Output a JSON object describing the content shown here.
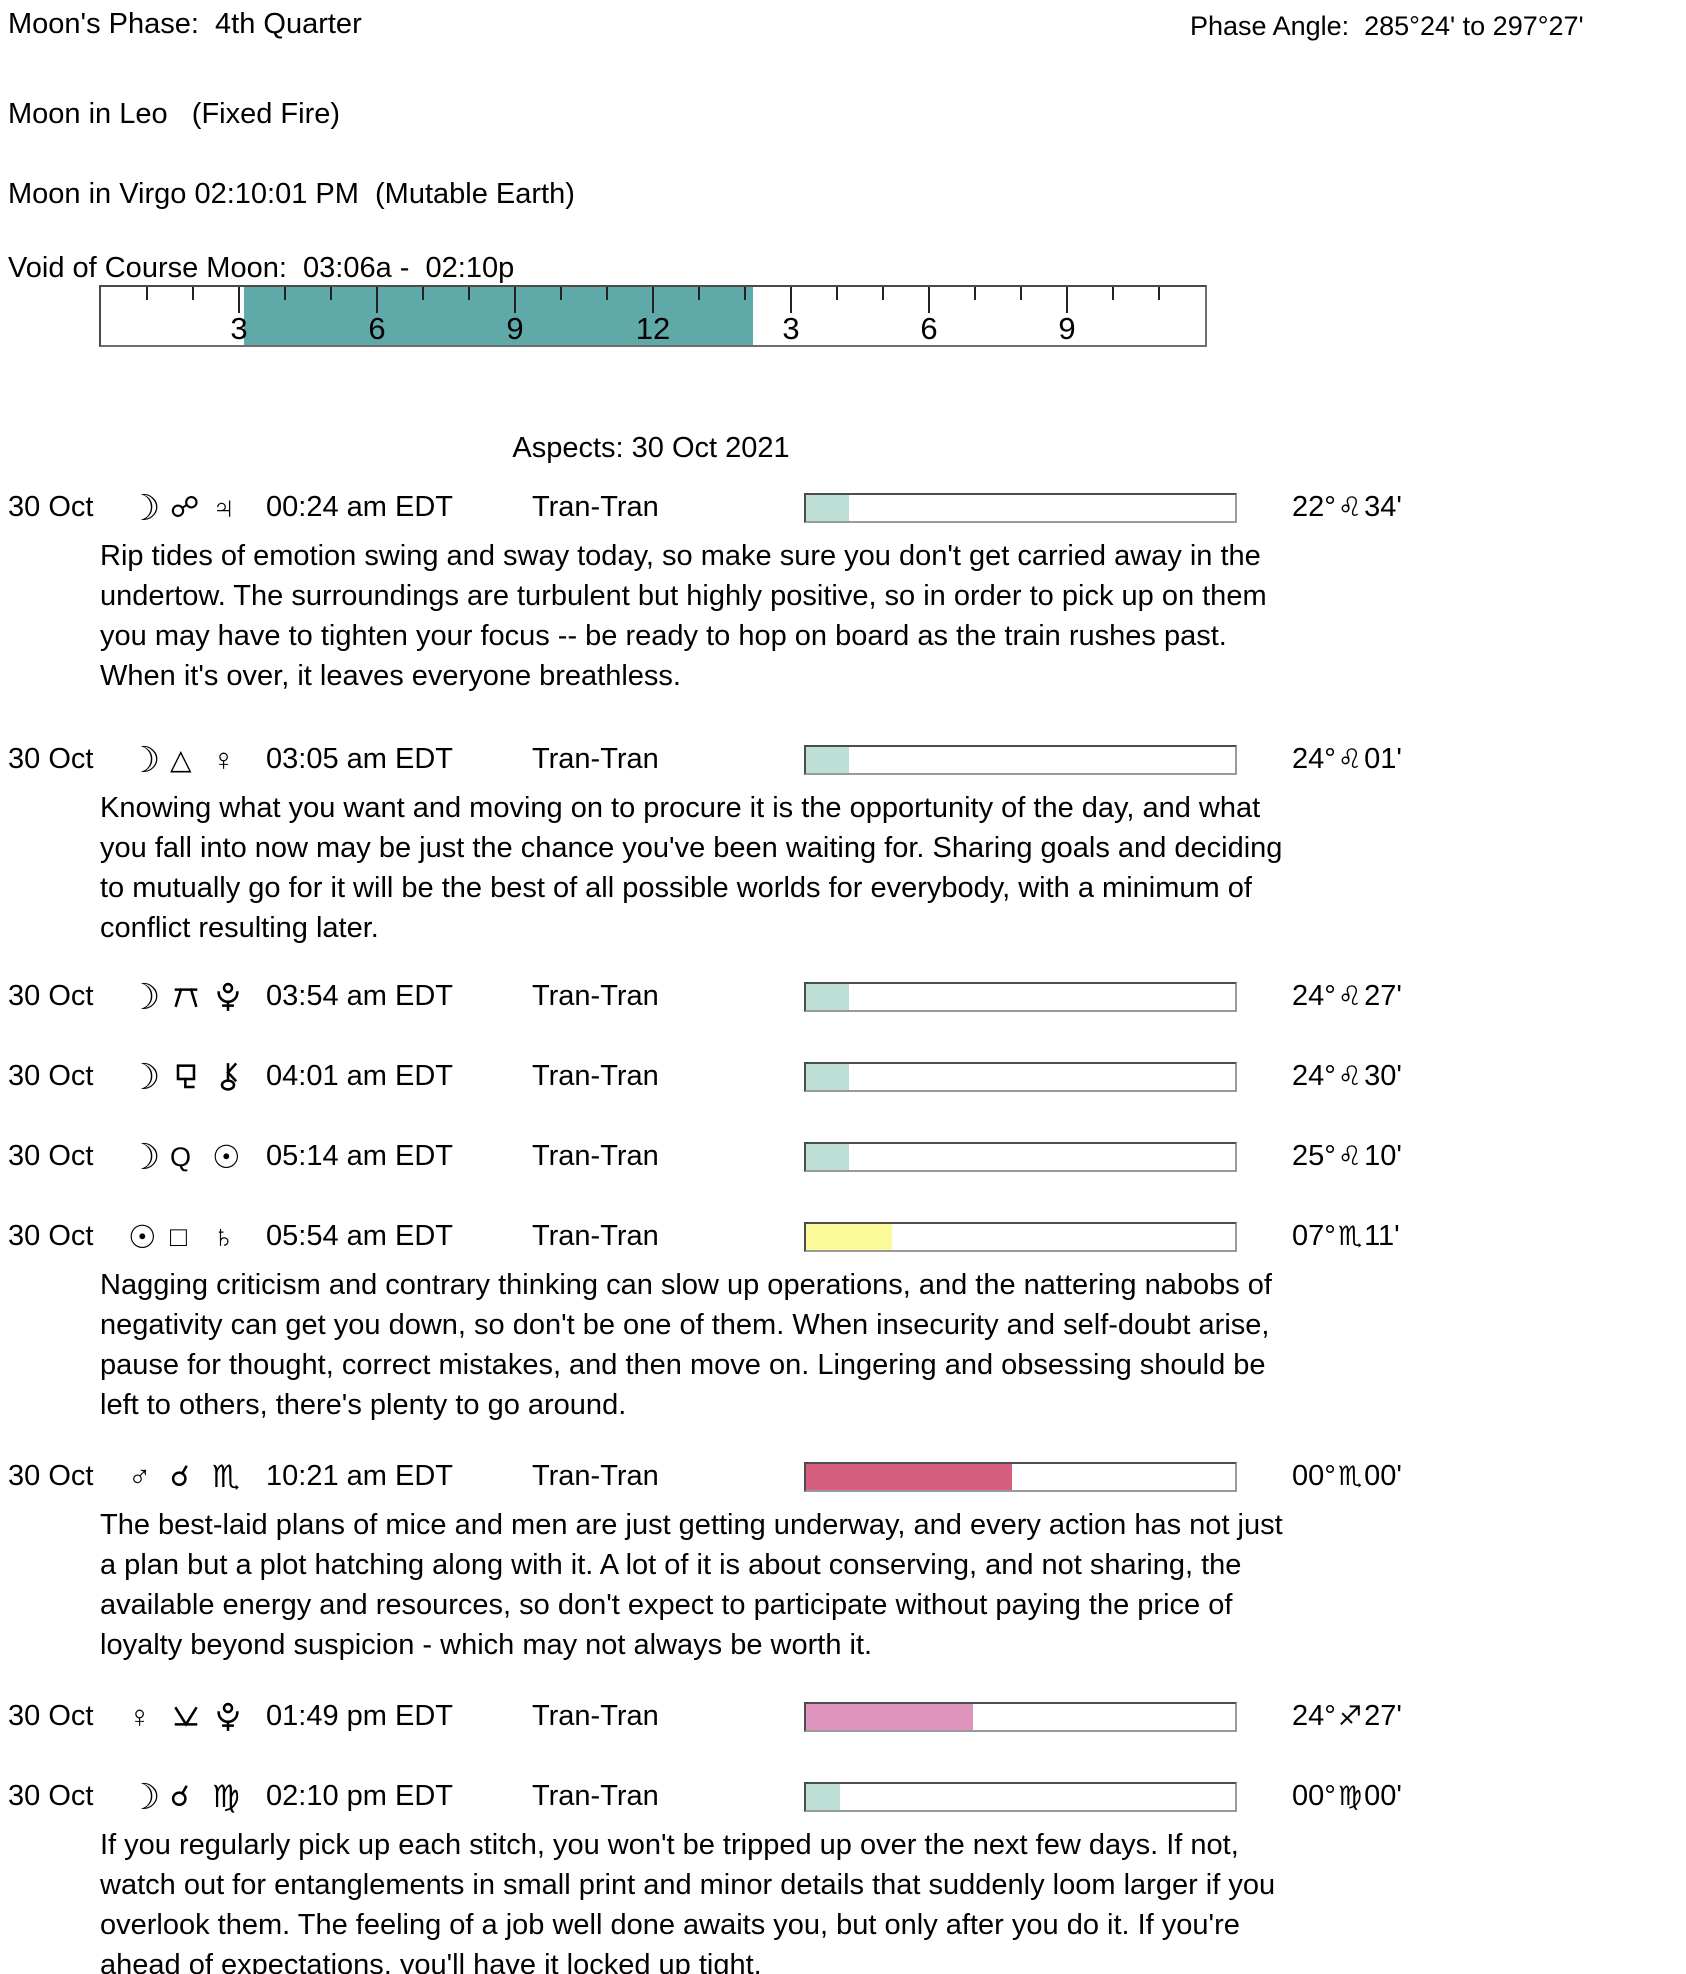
{
  "header": {
    "moons_phase": "Moon's Phase:  4th Quarter",
    "phase_angle": "Phase Angle:  285°24' to 297°27'",
    "moon_sign_line1": "Moon in Leo   (Fixed Fire)",
    "moon_sign_line2": "Moon in Virgo 02:10:01 PM  (Mutable Earth)",
    "voc_line": "Void of Course Moon:  03:06a -  02:10p"
  },
  "ruler": {
    "hours_total": 24,
    "shade_start_hour": 3.1,
    "shade_end_hour": 14.17,
    "shade_color": "#60a9a9",
    "labels": [
      {
        "text": "3",
        "hour": 3
      },
      {
        "text": "6",
        "hour": 6
      },
      {
        "text": "9",
        "hour": 9
      },
      {
        "text": "12",
        "hour": 12
      },
      {
        "text": "3",
        "hour": 15
      },
      {
        "text": "6",
        "hour": 18
      },
      {
        "text": "9",
        "hour": 21
      }
    ]
  },
  "aspects": {
    "title": "Aspects: 30 Oct 2021",
    "rows": [
      {
        "date": "30 Oct",
        "symbols": [
          "moon",
          "opposition",
          "jupiter"
        ],
        "time": "00:24 am EDT",
        "type": "Tran-Tran",
        "bar": {
          "percent": 10,
          "color": "#bedfd6"
        },
        "position": {
          "deg": "22°",
          "sign": "leo",
          "min": "34'"
        },
        "description": "Rip tides of emotion swing and sway today, so make sure you don't get carried away in the undertow. The surroundings are turbulent but highly positive, so in order to pick up on them you may have to tighten your focus -- be ready to hop on board as the train rushes past. When it's over, it leaves everyone breathless."
      },
      {
        "date": "30 Oct",
        "symbols": [
          "moon",
          "trine",
          "venus"
        ],
        "time": "03:05 am EDT",
        "type": "Tran-Tran",
        "bar": {
          "percent": 10,
          "color": "#bedfd6"
        },
        "position": {
          "deg": "24°",
          "sign": "leo",
          "min": "01'"
        },
        "description": "Knowing what you want and moving on to procure it is the opportunity of the day, and what you fall into now may be just the chance you've been waiting for. Sharing goals and deciding to mutually go for it will be the best of all possible worlds for everybody, with a minimum of conflict resulting later."
      },
      {
        "date": "30 Oct",
        "symbols": [
          "moon",
          "quincunx",
          "pluto"
        ],
        "time": "03:54 am EDT",
        "type": "Tran-Tran",
        "bar": {
          "percent": 10,
          "color": "#bedfd6"
        },
        "position": {
          "deg": "24°",
          "sign": "leo",
          "min": "27'"
        },
        "description": null
      },
      {
        "date": "30 Oct",
        "symbols": [
          "moon",
          "sesquiquadrate",
          "chiron"
        ],
        "time": "04:01 am EDT",
        "type": "Tran-Tran",
        "bar": {
          "percent": 10,
          "color": "#bedfd6"
        },
        "position": {
          "deg": "24°",
          "sign": "leo",
          "min": "30'"
        },
        "description": null
      },
      {
        "date": "30 Oct",
        "symbols": [
          "moon",
          "quintile",
          "sun"
        ],
        "time": "05:14 am EDT",
        "type": "Tran-Tran",
        "bar": {
          "percent": 10,
          "color": "#bedfd6"
        },
        "position": {
          "deg": "25°",
          "sign": "leo",
          "min": "10'"
        },
        "description": null
      },
      {
        "date": "30 Oct",
        "symbols": [
          "sun",
          "square",
          "saturn"
        ],
        "time": "05:54 am EDT",
        "type": "Tran-Tran",
        "bar": {
          "percent": 20,
          "color": "#fafa9b"
        },
        "position": {
          "deg": "07°",
          "sign": "scorpio",
          "min": "11'"
        },
        "description": "Nagging criticism and contrary thinking can slow up operations, and the nattering nabobs of negativity can get you down, so don't be one of them. When insecurity and self-doubt arise, pause for thought, correct mistakes, and then move on. Lingering and obsessing should be left to others, there's plenty to go around."
      },
      {
        "date": "30 Oct",
        "symbols": [
          "mars",
          "conjunction",
          "scorpio"
        ],
        "time": "10:21 am EDT",
        "type": "Tran-Tran",
        "bar": {
          "percent": 48,
          "color": "#d65f80"
        },
        "position": {
          "deg": "00°",
          "sign": "scorpio",
          "min": "00'"
        },
        "description": "The best-laid plans of mice and men are just getting underway, and every action has not just a plan but a plot hatching along with it. A lot of it is about conserving, and not sharing, the available energy and resources, so don't expect to participate without paying the price of loyalty beyond suspicion - which may not always be worth it."
      },
      {
        "date": "30 Oct",
        "symbols": [
          "venus",
          "semisextile",
          "pluto"
        ],
        "time": "01:49 pm EDT",
        "type": "Tran-Tran",
        "bar": {
          "percent": 39,
          "color": "#de94bc"
        },
        "position": {
          "deg": "24°",
          "sign": "sagittarius",
          "min": "27'"
        },
        "description": null
      },
      {
        "date": "30 Oct",
        "symbols": [
          "moon",
          "conjunction",
          "virgo"
        ],
        "time": "02:10 pm EDT",
        "type": "Tran-Tran",
        "bar": {
          "percent": 8,
          "color": "#bedfd6"
        },
        "position": {
          "deg": "00°",
          "sign": "virgo",
          "min": "00'"
        },
        "description": "If you regularly pick up each stitch, you won't be tripped up over the next few days. If not, watch out for entanglements in small print and minor details that suddenly loom larger if you overlook them. The feeling of a job well done awaits you, but only after you do it. If you're ahead of expectations, you'll have it locked up tight."
      }
    ]
  }
}
